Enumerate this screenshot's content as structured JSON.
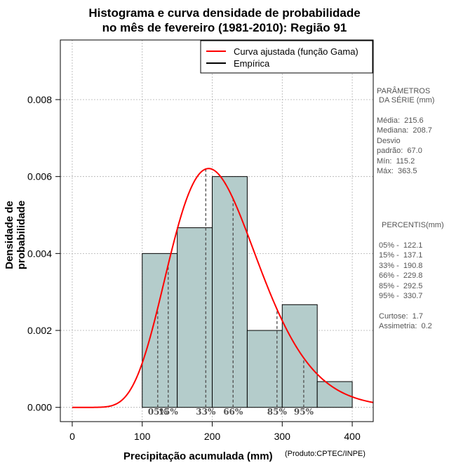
{
  "title_line1": "Histograma e curva densidade de probabilidade",
  "title_line2": "no mês de fevereiro (1981-2010): Região 91",
  "credit": "(Produto:CPTEC/INPE)",
  "colors": {
    "bars": "#b4cccb",
    "curve": "#ff0000",
    "grid": "#b0b0b0",
    "percentile_lines": "#555555"
  },
  "chart_data": {
    "type": "bar",
    "title": "Histograma e curva densidade de probabilidade no mês de fevereiro (1981-2010): Região 91",
    "xlabel": "Precipitação acumulada (mm)",
    "ylabel": "Densidade de probabilidade",
    "xlim": [
      -17,
      430
    ],
    "ylim": [
      -0.00037,
      0.00955
    ],
    "x_ticks": [
      0,
      100,
      200,
      300,
      400
    ],
    "x_tick_labels": [
      "0",
      "100",
      "200",
      "300",
      "400"
    ],
    "y_ticks": [
      0.0,
      0.002,
      0.004,
      0.006,
      0.008
    ],
    "y_tick_labels": [
      "0.000",
      "0.002",
      "0.004",
      "0.006",
      "0.008"
    ],
    "grid": true,
    "bins": [
      {
        "from": 100,
        "to": 150,
        "density": 0.004
      },
      {
        "from": 150,
        "to": 200,
        "density": 0.00467
      },
      {
        "from": 200,
        "to": 250,
        "density": 0.006
      },
      {
        "from": 250,
        "to": 300,
        "density": 0.002
      },
      {
        "from": 300,
        "to": 350,
        "density": 0.00267
      },
      {
        "from": 350,
        "to": 400,
        "density": 0.00067
      }
    ],
    "fitted_curve": {
      "name": "Curva ajustada (função Gama)",
      "mean": 215.6,
      "sd": 67.0
    },
    "percentile_markers": [
      {
        "label": "05%",
        "value": 122.1
      },
      {
        "label": "15%",
        "value": 137.1
      },
      {
        "label": "33%",
        "value": 190.8
      },
      {
        "label": "66%",
        "value": 229.8
      },
      {
        "label": "85%",
        "value": 292.5
      },
      {
        "label": "95%",
        "value": 330.7
      }
    ],
    "legend": [
      "Curva ajustada (função Gama)",
      "Empírica"
    ],
    "legend_position": "top-right"
  },
  "parameters": {
    "heading_line1": "PARÂMETROS",
    "heading_line2": "DA SÉRIE (mm)",
    "media": "Média:  215.6",
    "mediana": "Mediana:  208.7",
    "desvio1": "Desvio",
    "desvio2": "padrão:  67.0",
    "min": "Mín:  115.2",
    "max": "Máx:  363.5"
  },
  "percentis": {
    "heading": "PERCENTIS(mm)",
    "rows": [
      "05% -  122.1",
      "15% -  137.1",
      "33% -  190.8",
      "66% -  229.8",
      "85% -  292.5",
      "95% -  330.7"
    ],
    "curtose": "Curtose:  1.7",
    "assimetria": "Assimetria:  0.2"
  }
}
